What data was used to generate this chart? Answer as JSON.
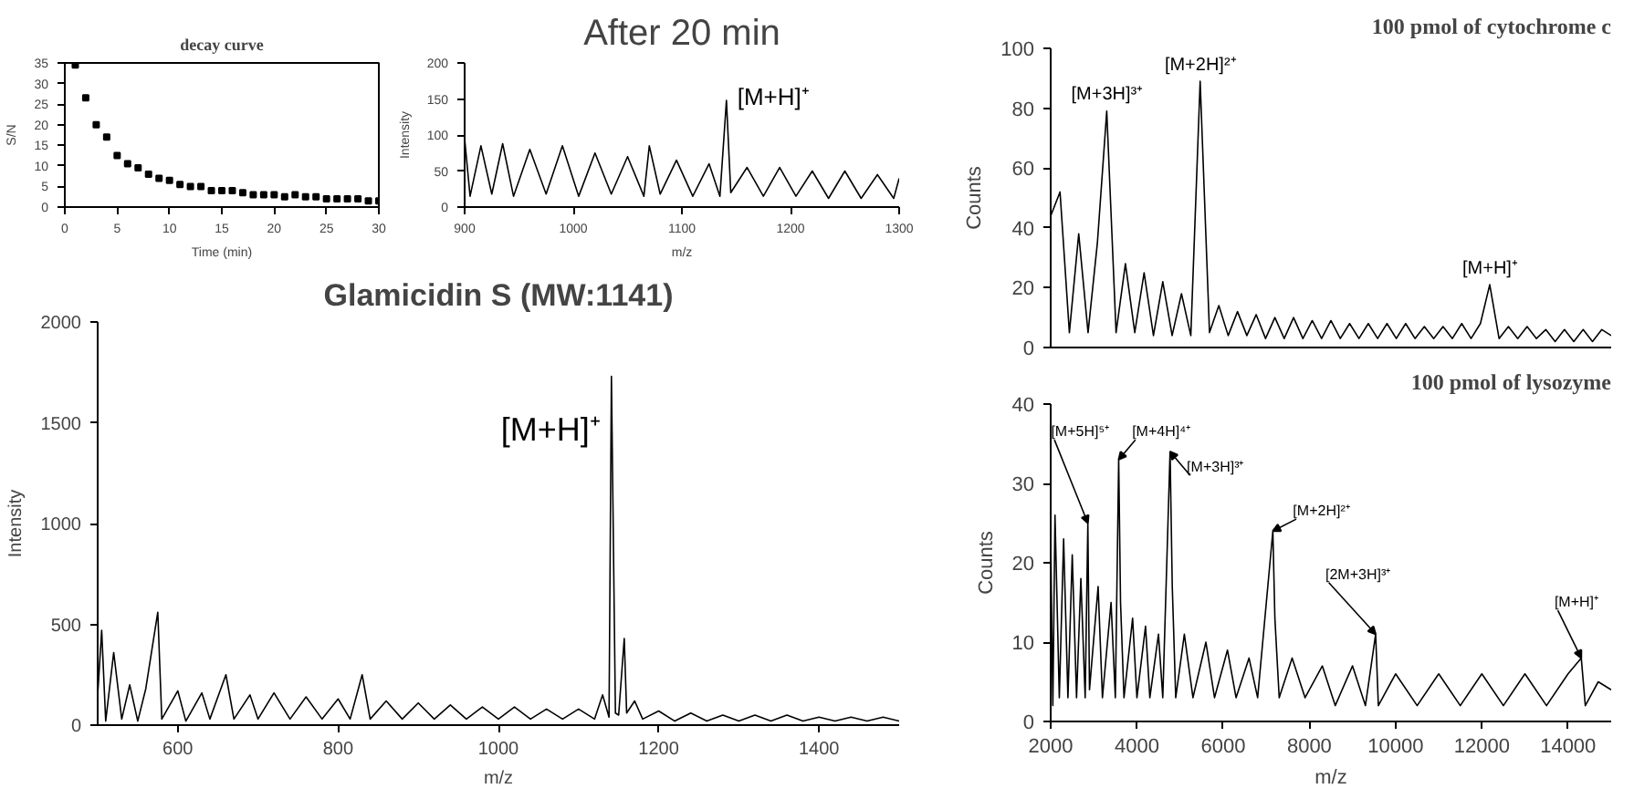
{
  "chart_data": [
    {
      "type": "scatter",
      "title": "decay curve",
      "xlabel": "Time (min)",
      "ylabel": "S/N",
      "marker": "square",
      "color": "#000000",
      "x": [
        1,
        2,
        3,
        4,
        5,
        6,
        7,
        8,
        9,
        10,
        11,
        12,
        13,
        14,
        15,
        16,
        17,
        18,
        19,
        20,
        21,
        22,
        23,
        24,
        25,
        26,
        27,
        28,
        29,
        30
      ],
      "values": [
        34.5,
        26.5,
        20,
        17,
        12.5,
        10.5,
        9.5,
        8,
        7,
        6.5,
        5.5,
        5,
        5,
        4,
        4,
        4,
        3.5,
        3,
        3,
        3,
        2.5,
        3,
        2.5,
        2.5,
        2,
        2,
        2,
        2,
        1.5,
        1.5
      ],
      "xlim": [
        0,
        30
      ],
      "ylim": [
        0,
        35
      ],
      "xticks": [
        0,
        5,
        10,
        15,
        20,
        25,
        30
      ],
      "yticks": [
        0,
        5,
        10,
        15,
        20,
        25,
        30,
        35
      ]
    },
    {
      "type": "line",
      "title": "After 20 min",
      "xlabel": "m/z",
      "ylabel": "Intensity",
      "color": "#000000",
      "x": [
        900,
        905,
        915,
        925,
        935,
        945,
        960,
        975,
        990,
        1005,
        1020,
        1035,
        1050,
        1065,
        1070,
        1080,
        1095,
        1110,
        1125,
        1135,
        1141,
        1145,
        1160,
        1175,
        1190,
        1205,
        1220,
        1235,
        1250,
        1265,
        1280,
        1295,
        1300
      ],
      "values": [
        95,
        15,
        85,
        18,
        88,
        15,
        80,
        18,
        85,
        15,
        75,
        18,
        70,
        15,
        85,
        18,
        65,
        15,
        60,
        15,
        148,
        20,
        55,
        15,
        55,
        15,
        50,
        12,
        50,
        12,
        45,
        12,
        40
      ],
      "xlim": [
        900,
        1300
      ],
      "ylim": [
        0,
        200
      ],
      "xticks": [
        900,
        1000,
        1100,
        1200,
        1300
      ],
      "yticks": [
        0,
        50,
        100,
        150,
        200
      ],
      "annotations": [
        {
          "text": "[M+H]⁺",
          "x": 1141,
          "y": 148
        }
      ]
    },
    {
      "type": "line",
      "title": "100 pmol of cytochrome c",
      "ylabel": "Counts",
      "color": "#000000",
      "categories": [
        null,
        null,
        null,
        null,
        null,
        null,
        null,
        null,
        null,
        null,
        null,
        null,
        null,
        null,
        null,
        null,
        null,
        null,
        null,
        null,
        null,
        null,
        null,
        null,
        null,
        null,
        null,
        null,
        null,
        null,
        null,
        null,
        null,
        null,
        null,
        null,
        null,
        null,
        null,
        null,
        null,
        null,
        null,
        null,
        null,
        null,
        null,
        null,
        null,
        null,
        null,
        null,
        null,
        null,
        null,
        null,
        null,
        null,
        null,
        null,
        null
      ],
      "values": [
        44,
        52,
        5,
        38,
        5,
        35,
        79,
        5,
        28,
        5,
        25,
        4,
        22,
        4,
        18,
        4,
        89,
        5,
        14,
        4,
        12,
        4,
        11,
        3,
        10,
        3,
        10,
        3,
        9,
        3,
        9,
        3,
        8,
        3,
        8,
        3,
        8,
        3,
        8,
        3,
        7,
        3,
        7,
        3,
        8,
        3,
        8,
        21,
        3,
        7,
        3,
        7,
        3,
        6,
        2,
        6,
        2,
        6,
        2,
        6,
        4
      ],
      "ylim": [
        0,
        100
      ],
      "yticks": [
        0,
        20,
        40,
        60,
        80,
        100
      ],
      "annotations": [
        {
          "text": "[M+3H]³⁺",
          "y": 79
        },
        {
          "text": "[M+2H]²⁺",
          "y": 89
        },
        {
          "text": "[M+H]⁺",
          "y": 21
        }
      ]
    },
    {
      "type": "line",
      "title": "Glamicidin S (MW:1141)",
      "xlabel": "m/z",
      "ylabel": "Intensity",
      "color": "#000000",
      "x": [
        500,
        505,
        510,
        520,
        530,
        540,
        550,
        560,
        575,
        580,
        600,
        610,
        630,
        640,
        660,
        670,
        690,
        700,
        720,
        740,
        760,
        780,
        800,
        815,
        830,
        840,
        860,
        880,
        900,
        920,
        940,
        960,
        980,
        1000,
        1020,
        1040,
        1060,
        1080,
        1100,
        1120,
        1130,
        1138,
        1141,
        1146,
        1150,
        1157,
        1160,
        1170,
        1180,
        1200,
        1220,
        1240,
        1260,
        1280,
        1300,
        1320,
        1340,
        1360,
        1380,
        1400,
        1420,
        1440,
        1460,
        1480,
        1500
      ],
      "values": [
        150,
        470,
        20,
        360,
        30,
        200,
        20,
        180,
        560,
        30,
        170,
        20,
        160,
        30,
        250,
        30,
        150,
        30,
        160,
        30,
        140,
        30,
        130,
        30,
        250,
        30,
        120,
        30,
        110,
        30,
        100,
        30,
        90,
        30,
        90,
        30,
        80,
        30,
        80,
        30,
        150,
        40,
        1730,
        60,
        50,
        430,
        60,
        120,
        30,
        70,
        20,
        60,
        20,
        50,
        20,
        50,
        20,
        50,
        20,
        40,
        20,
        40,
        20,
        40,
        20
      ],
      "xlim": [
        500,
        1500
      ],
      "ylim": [
        0,
        2000
      ],
      "xticks": [
        600,
        800,
        1000,
        1200,
        1400
      ],
      "yticks": [
        0,
        500,
        1000,
        1500,
        2000
      ],
      "annotations": [
        {
          "text": "[M+H]⁺",
          "x": 1141,
          "y": 1730
        }
      ]
    },
    {
      "type": "line",
      "title": "100 pmol of lysozyme",
      "xlabel": "m/z",
      "ylabel": "Counts",
      "color": "#000000",
      "x": [
        2000,
        2050,
        2100,
        2200,
        2300,
        2400,
        2500,
        2600,
        2700,
        2800,
        2862,
        2900,
        3100,
        3200,
        3400,
        3500,
        3577,
        3620,
        3700,
        3900,
        4000,
        4200,
        4300,
        4500,
        4600,
        4769,
        4820,
        4900,
        5100,
        5300,
        5600,
        5800,
        6100,
        6300,
        6600,
        6800,
        7153,
        7200,
        7300,
        7600,
        7900,
        8300,
        8600,
        9000,
        9300,
        9537,
        9600,
        10000,
        10500,
        11000,
        11500,
        12000,
        12500,
        13000,
        13500,
        14000,
        14306,
        14400,
        14700,
        15000
      ],
      "values": [
        23,
        2,
        26,
        3,
        23,
        3,
        21,
        3,
        18,
        3,
        25,
        4,
        17,
        3,
        15,
        3,
        33,
        15,
        3,
        13,
        3,
        12,
        3,
        11,
        3,
        34,
        17,
        3,
        11,
        3,
        10,
        3,
        9,
        3,
        8,
        3,
        24,
        13,
        3,
        8,
        3,
        7,
        2,
        7,
        2,
        11,
        2,
        6,
        2,
        6,
        2,
        6,
        2,
        6,
        2,
        6,
        8,
        2,
        5,
        4
      ],
      "xlim": [
        2000,
        15000
      ],
      "ylim": [
        0,
        40
      ],
      "xticks": [
        2000,
        4000,
        6000,
        8000,
        10000,
        12000,
        14000
      ],
      "yticks": [
        0,
        10,
        20,
        30,
        40
      ],
      "annotations": [
        {
          "text": "[M+5H]⁵⁺",
          "x": 2862,
          "y": 25
        },
        {
          "text": "[M+4H]⁴⁺",
          "x": 3577,
          "y": 33
        },
        {
          "text": "[M+3H]³⁺",
          "x": 4769,
          "y": 34
        },
        {
          "text": "[M+2H]²⁺",
          "x": 7153,
          "y": 24
        },
        {
          "text": "[2M+3H]³⁺",
          "x": 9537,
          "y": 11
        },
        {
          "text": "[M+H]⁺",
          "x": 14306,
          "y": 8
        }
      ]
    }
  ]
}
